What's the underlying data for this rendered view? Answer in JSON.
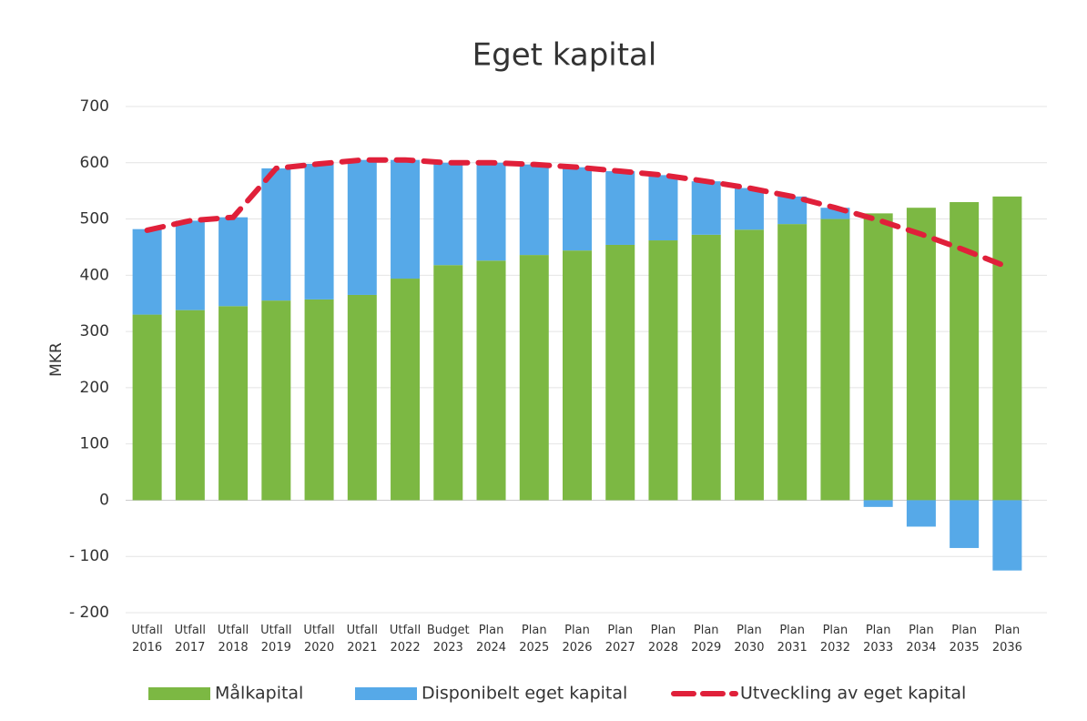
{
  "chart_data": {
    "type": "bar",
    "title": "Eget kapital",
    "y_label": "MKR",
    "categories": [
      "Utfall 2016",
      "Utfall 2017",
      "Utfall 2018",
      "Utfall 2019",
      "Utfall 2020",
      "Utfall 2021",
      "Utfall 2022",
      "Budget 2023",
      "Plan 2024",
      "Plan 2025",
      "Plan 2026",
      "Plan 2027",
      "Plan 2028",
      "Plan 2029",
      "Plan 2030",
      "Plan 2031",
      "Plan 2032",
      "Plan 2033",
      "Plan 2034",
      "Plan 2035",
      "Plan 2036"
    ],
    "stacked": true,
    "series": [
      {
        "name": "Målkapital",
        "type": "bar",
        "color": "#7cb843",
        "values": [
          330,
          338,
          345,
          355,
          357,
          365,
          394,
          418,
          426,
          436,
          444,
          454,
          462,
          472,
          481,
          491,
          500,
          510,
          520,
          530,
          540
        ]
      },
      {
        "name": "Disponibelt eget kapital",
        "type": "bar",
        "color": "#56a9e8",
        "values": [
          152,
          159,
          158,
          235,
          241,
          240,
          211,
          182,
          174,
          161,
          148,
          131,
          116,
          95,
          74,
          49,
          20,
          -12,
          -47,
          -85,
          -125
        ]
      },
      {
        "name": "Utveckling av eget kapital",
        "type": "line",
        "color": "#e0203a",
        "dashed": true,
        "values": [
          480,
          497,
          503,
          590,
          598,
          605,
          605,
          600,
          600,
          597,
          592,
          585,
          578,
          567,
          555,
          540,
          520,
          498,
          473,
          445,
          415
        ]
      }
    ],
    "ylim": [
      -200,
      700
    ],
    "yticks": [
      {
        "value": -200,
        "label": "- 200"
      },
      {
        "value": -100,
        "label": "- 100"
      },
      0,
      100,
      200,
      300,
      400,
      500,
      600,
      700
    ],
    "grid": true,
    "legend": "bottom"
  }
}
